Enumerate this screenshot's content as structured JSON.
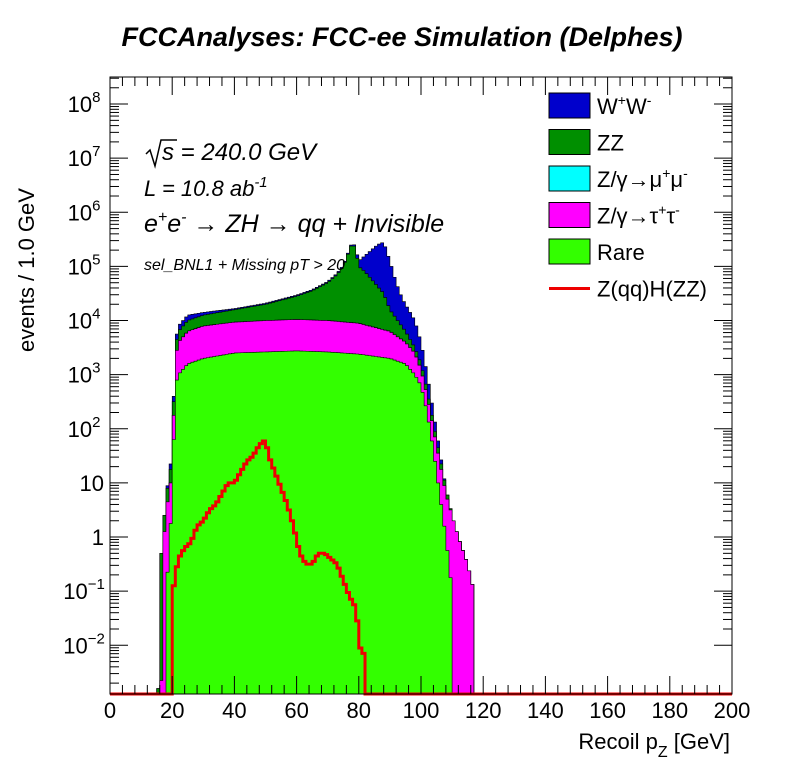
{
  "chart_data": {
    "type": "histogram-stacked-log",
    "title": "FCCAnalyses: FCC-ee Simulation (Delphes)",
    "xlabel_main": "Recoil p",
    "xlabel_sub": "Z",
    "xlabel_unit": " [GeV]",
    "ylabel": "events / 1.0 GeV",
    "xlim": [
      0,
      200
    ],
    "ylim_log10": [
      -2.9,
      8.5
    ],
    "x_ticks": [
      "0",
      "20",
      "40",
      "60",
      "80",
      "100",
      "120",
      "140",
      "160",
      "180",
      "200"
    ],
    "y_ticks": [
      {
        "base": "10",
        "exp": "8",
        "v": 8
      },
      {
        "base": "10",
        "exp": "7",
        "v": 7
      },
      {
        "base": "10",
        "exp": "6",
        "v": 6
      },
      {
        "base": "10",
        "exp": "5",
        "v": 5
      },
      {
        "base": "10",
        "exp": "4",
        "v": 4
      },
      {
        "base": "10",
        "exp": "3",
        "v": 3
      },
      {
        "base": "10",
        "exp": "2",
        "v": 2
      },
      {
        "base": "10",
        "exp": "",
        "v": 1
      },
      {
        "base": "1",
        "exp": "",
        "v": 0
      },
      {
        "base": "10",
        "exp": "−1",
        "v": -1
      },
      {
        "base": "10",
        "exp": "−2",
        "v": -2
      }
    ],
    "annotations": {
      "sqrt_s": "s",
      "sqrt_s_rest": " = 240.0 GeV",
      "lumi": "L = 10.8 ab",
      "lumi_exp": "-1",
      "process_a": "e",
      "process_a_sup1": "+",
      "process_b": "e",
      "process_b_sup": "-",
      "process_rest": " → ZH → qq + Invisible",
      "selection": "sel_BNL1 + Missing pT > 20"
    },
    "legend_position": "top-right",
    "legend": [
      {
        "label": "W",
        "sup1": "+",
        "label2": "W",
        "sup2": "-",
        "color": "#0000cc",
        "type": "fill"
      },
      {
        "label": "ZZ",
        "color": "#008f00",
        "type": "fill"
      },
      {
        "label": "Z/γ→μ",
        "sup1": "+",
        "label2": "μ",
        "sup2": "-",
        "color": "#00ffff",
        "type": "fill"
      },
      {
        "label": "Z/γ→τ",
        "sup1": "+",
        "label2": "τ",
        "sup2": "-",
        "color": "#ff00ff",
        "type": "fill"
      },
      {
        "label": "Rare",
        "color": "#33ff00",
        "type": "fill"
      },
      {
        "label": "Z(qq)H(ZZ)",
        "color": "#ee0000",
        "type": "line"
      }
    ],
    "bin_width": 1,
    "stack_order": [
      "Rare",
      "Z/γ→ττ",
      "Z/γ→μμ",
      "ZZ",
      "WW"
    ],
    "stacked_cumulative_log10": {
      "Rare": [
        [
          17,
          -5
        ],
        [
          18,
          -1.0
        ],
        [
          19,
          -0.3
        ],
        [
          20,
          0.8
        ],
        [
          21,
          2.8
        ],
        [
          22,
          3.0
        ],
        [
          25,
          3.2
        ],
        [
          30,
          3.3
        ],
        [
          40,
          3.4
        ],
        [
          50,
          3.42
        ],
        [
          60,
          3.44
        ],
        [
          70,
          3.42
        ],
        [
          80,
          3.38
        ],
        [
          90,
          3.3
        ],
        [
          95,
          3.2
        ],
        [
          98,
          3.0
        ],
        [
          100,
          2.8
        ],
        [
          102,
          2.3
        ],
        [
          104,
          1.6
        ],
        [
          106,
          0.8
        ],
        [
          108,
          0.0
        ],
        [
          110,
          -1.0
        ],
        [
          111,
          -5
        ]
      ],
      "Rare+Z/γ→ττ": [
        [
          16,
          -5
        ],
        [
          17,
          -0.3
        ],
        [
          18,
          0.5
        ],
        [
          19,
          0.8
        ],
        [
          20,
          1.2
        ],
        [
          21,
          3.3
        ],
        [
          22,
          3.6
        ],
        [
          25,
          3.8
        ],
        [
          30,
          3.9
        ],
        [
          40,
          3.97
        ],
        [
          50,
          4.0
        ],
        [
          60,
          4.02
        ],
        [
          70,
          4.0
        ],
        [
          80,
          3.95
        ],
        [
          90,
          3.8
        ],
        [
          95,
          3.6
        ],
        [
          98,
          3.4
        ],
        [
          100,
          3.1
        ],
        [
          102,
          2.6
        ],
        [
          104,
          2.0
        ],
        [
          106,
          1.4
        ],
        [
          108,
          0.8
        ],
        [
          110,
          0.4
        ],
        [
          112,
          0.0
        ],
        [
          115,
          -0.5
        ],
        [
          117,
          -1.0
        ],
        [
          118,
          -5
        ]
      ],
      "Rare+Z/γ→ττ+Z/γ→μμ": [
        [
          16,
          -5
        ],
        [
          17,
          -0.3
        ],
        [
          18,
          0.5
        ],
        [
          19,
          0.8
        ],
        [
          20,
          1.2
        ],
        [
          21,
          3.3
        ],
        [
          22,
          3.6
        ],
        [
          25,
          3.8
        ],
        [
          30,
          3.9
        ],
        [
          40,
          3.97
        ],
        [
          50,
          4.0
        ],
        [
          60,
          4.02
        ],
        [
          70,
          4.0
        ],
        [
          80,
          3.95
        ],
        [
          90,
          3.8
        ],
        [
          95,
          3.6
        ],
        [
          98,
          3.4
        ],
        [
          100,
          3.1
        ],
        [
          102,
          2.6
        ],
        [
          104,
          2.0
        ],
        [
          106,
          1.4
        ],
        [
          108,
          0.8
        ],
        [
          110,
          0.4
        ],
        [
          112,
          0.0
        ],
        [
          115,
          -0.5
        ],
        [
          117,
          -1.0
        ],
        [
          118,
          -5
        ]
      ],
      "Rare+Z/γ→ττ+Z/γ→μμ+ZZ": [
        [
          15,
          -5
        ],
        [
          16,
          -0.6
        ],
        [
          17,
          0.0
        ],
        [
          18,
          0.8
        ],
        [
          19,
          1.0
        ],
        [
          20,
          1.5
        ],
        [
          21,
          3.5
        ],
        [
          22,
          3.8
        ],
        [
          25,
          4.0
        ],
        [
          30,
          4.1
        ],
        [
          40,
          4.2
        ],
        [
          50,
          4.3
        ],
        [
          60,
          4.45
        ],
        [
          65,
          4.55
        ],
        [
          70,
          4.7
        ],
        [
          73,
          4.85
        ],
        [
          75,
          5.0
        ],
        [
          77,
          5.3
        ],
        [
          78,
          5.45
        ],
        [
          79,
          5.3
        ],
        [
          80,
          5.0
        ],
        [
          82,
          4.9
        ],
        [
          85,
          4.7
        ],
        [
          88,
          4.5
        ],
        [
          90,
          4.2
        ],
        [
          95,
          3.8
        ],
        [
          98,
          3.5
        ],
        [
          100,
          3.2
        ],
        [
          102,
          2.7
        ],
        [
          104,
          2.1
        ],
        [
          106,
          1.5
        ],
        [
          108,
          0.9
        ],
        [
          110,
          0.4
        ],
        [
          112,
          0.0
        ],
        [
          115,
          -0.5
        ],
        [
          117,
          -1.0
        ],
        [
          118,
          -5
        ]
      ],
      "all": [
        [
          15,
          -5
        ],
        [
          16,
          -0.6
        ],
        [
          17,
          0.0
        ],
        [
          18,
          0.8
        ],
        [
          19,
          1.1
        ],
        [
          20,
          1.6
        ],
        [
          21,
          3.6
        ],
        [
          22,
          3.9
        ],
        [
          25,
          4.1
        ],
        [
          30,
          4.15
        ],
        [
          40,
          4.22
        ],
        [
          50,
          4.32
        ],
        [
          60,
          4.47
        ],
        [
          65,
          4.57
        ],
        [
          70,
          4.72
        ],
        [
          73,
          4.87
        ],
        [
          75,
          5.02
        ],
        [
          77,
          5.32
        ],
        [
          78,
          5.47
        ],
        [
          79,
          5.33
        ],
        [
          80,
          5.1
        ],
        [
          82,
          5.2
        ],
        [
          84,
          5.3
        ],
        [
          86,
          5.4
        ],
        [
          88,
          5.45
        ],
        [
          90,
          5.1
        ],
        [
          92,
          4.7
        ],
        [
          94,
          4.4
        ],
        [
          96,
          4.2
        ],
        [
          98,
          4.0
        ],
        [
          100,
          3.6
        ],
        [
          102,
          3.0
        ],
        [
          104,
          2.3
        ],
        [
          106,
          1.6
        ],
        [
          108,
          0.9
        ],
        [
          110,
          0.4
        ],
        [
          112,
          0.0
        ],
        [
          115,
          -0.5
        ],
        [
          117,
          -1.0
        ],
        [
          118,
          -5
        ]
      ]
    },
    "signal_log10": [
      [
        19,
        -5
      ],
      [
        20,
        -1.1
      ],
      [
        21,
        -0.7
      ],
      [
        22,
        -0.4
      ],
      [
        24,
        -0.2
      ],
      [
        26,
        -0.1
      ],
      [
        28,
        0.2
      ],
      [
        30,
        0.3
      ],
      [
        32,
        0.5
      ],
      [
        34,
        0.6
      ],
      [
        36,
        0.8
      ],
      [
        38,
        1.0
      ],
      [
        40,
        1.0
      ],
      [
        42,
        1.2
      ],
      [
        44,
        1.4
      ],
      [
        46,
        1.5
      ],
      [
        48,
        1.7
      ],
      [
        50,
        1.8
      ],
      [
        51,
        1.5
      ],
      [
        53,
        1.2
      ],
      [
        55,
        0.9
      ],
      [
        57,
        0.6
      ],
      [
        59,
        0.2
      ],
      [
        61,
        -0.3
      ],
      [
        63,
        -0.5
      ],
      [
        65,
        -0.5
      ],
      [
        67,
        -0.3
      ],
      [
        69,
        -0.3
      ],
      [
        71,
        -0.4
      ],
      [
        73,
        -0.5
      ],
      [
        75,
        -0.8
      ],
      [
        77,
        -1.1
      ],
      [
        79,
        -1.3
      ],
      [
        80,
        -1.8
      ],
      [
        81,
        -2.3
      ],
      [
        82,
        -2.0
      ],
      [
        83,
        -5
      ],
      [
        84,
        -2.3
      ],
      [
        85,
        -5
      ],
      [
        95,
        -5
      ],
      [
        96,
        -2.3
      ],
      [
        98,
        -5
      ],
      [
        99,
        -2.3
      ],
      [
        100,
        -5
      ]
    ]
  }
}
